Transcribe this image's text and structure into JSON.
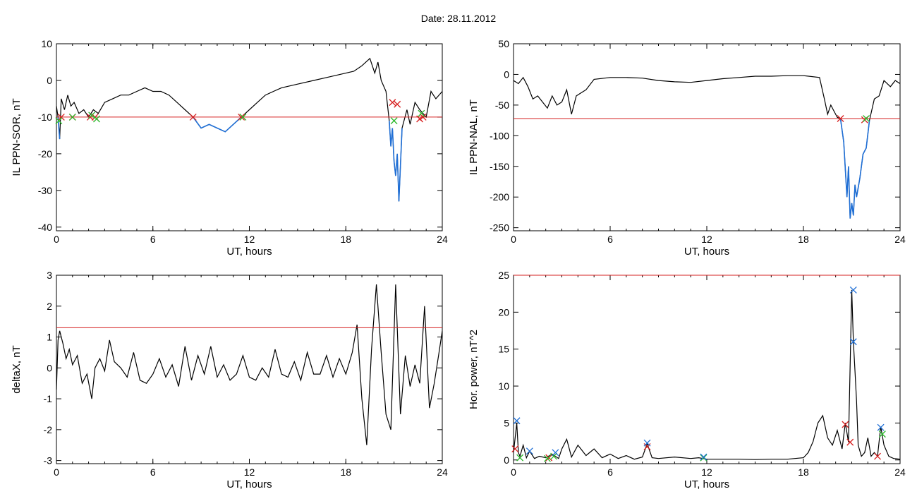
{
  "header": {
    "title": "Date:  28.11.2012"
  },
  "colors": {
    "axis": "#000000",
    "data_line": "#000000",
    "below_threshold": "#1f6fd6",
    "threshold": "#d62020",
    "marker_red": "#d62020",
    "marker_green": "#2bb82b",
    "marker_blue": "#1f6fd6"
  },
  "chart_data": [
    {
      "id": "sor",
      "type": "line",
      "title": "",
      "xlabel": "UT, hours",
      "ylabel": "IL PPN-SOR, nT",
      "xlim": [
        0,
        24
      ],
      "ylim": [
        -41,
        10
      ],
      "xticks": [
        0,
        6,
        12,
        18,
        24
      ],
      "yticks": [
        10,
        0,
        -10,
        -20,
        -30,
        -40
      ],
      "threshold": -10,
      "series": [
        {
          "x": [
            0,
            0.1,
            0.2,
            0.3,
            0.5,
            0.7,
            0.9,
            1.1,
            1.4,
            1.7,
            2.0,
            2.3,
            2.6,
            3.0,
            3.5,
            4.0,
            4.5,
            5.0,
            5.5,
            6.0,
            6.5,
            7.0,
            7.5,
            8.0,
            8.5,
            9.0,
            9.5,
            10.0,
            10.5,
            11.0,
            11.5,
            12.0,
            12.5,
            13.0,
            13.5,
            14.0,
            15.0,
            16.0,
            17.0,
            18.0,
            18.5,
            19.0,
            19.5,
            19.8,
            20.0,
            20.2,
            20.5,
            20.7,
            20.8,
            20.9,
            21.0,
            21.1,
            21.2,
            21.3,
            21.5,
            21.8,
            22.0,
            22.3,
            22.6,
            23.0,
            23.3,
            23.6,
            24.0
          ],
          "y": [
            -7,
            -10,
            -16,
            -5,
            -8,
            -4,
            -7,
            -6,
            -9,
            -8,
            -10,
            -8,
            -9,
            -6,
            -5,
            -4,
            -4,
            -3,
            -2,
            -3,
            -3,
            -4,
            -6,
            -8,
            -10,
            -13,
            -12,
            -13,
            -14,
            -12,
            -10,
            -8,
            -6,
            -4,
            -3,
            -2,
            -1,
            0,
            1,
            2,
            2.5,
            4,
            6,
            2,
            5,
            0,
            -3,
            -11,
            -18,
            -13,
            -22,
            -26,
            -20,
            -33,
            -13,
            -8,
            -12,
            -6,
            -8,
            -10,
            -3,
            -5,
            -3
          ]
        }
      ],
      "markers": {
        "red": [
          [
            0.3,
            -10
          ],
          [
            1.0,
            -10
          ],
          [
            2.1,
            -10
          ],
          [
            2.4,
            -10
          ],
          [
            8.5,
            -10
          ],
          [
            11.5,
            -10
          ],
          [
            20.9,
            -6
          ],
          [
            21.2,
            -6.5
          ],
          [
            22.6,
            -10.5
          ],
          [
            22.8,
            -10
          ]
        ],
        "green": [
          [
            0.15,
            -11
          ],
          [
            1.0,
            -10
          ],
          [
            2.2,
            -9.5
          ],
          [
            2.5,
            -10.5
          ],
          [
            11.6,
            -10
          ],
          [
            21.0,
            -11
          ],
          [
            22.7,
            -9
          ]
        ]
      }
    },
    {
      "id": "nal",
      "type": "line",
      "title": "",
      "xlabel": "UT, hours",
      "ylabel": "IL PPN-NAL, nT",
      "xlim": [
        0,
        24
      ],
      "ylim": [
        -255,
        50
      ],
      "xticks": [
        0,
        6,
        12,
        18,
        24
      ],
      "yticks": [
        50,
        0,
        -50,
        -100,
        -150,
        -200,
        -250
      ],
      "threshold": -72,
      "series": [
        {
          "x": [
            0,
            0.3,
            0.6,
            0.9,
            1.2,
            1.5,
            1.8,
            2.1,
            2.4,
            2.7,
            3.0,
            3.3,
            3.6,
            3.9,
            4.2,
            4.5,
            5.0,
            6.0,
            7.0,
            8.0,
            9.0,
            10.0,
            11.0,
            12.0,
            13.0,
            14.0,
            15.0,
            16.0,
            17.0,
            18.0,
            19.0,
            19.3,
            19.5,
            19.7,
            19.9,
            20.1,
            20.3,
            20.5,
            20.7,
            20.8,
            20.9,
            21.0,
            21.1,
            21.2,
            21.3,
            21.5,
            21.7,
            21.9,
            22.1,
            22.4,
            22.7,
            23.0,
            23.4,
            23.7,
            24.0
          ],
          "y": [
            -10,
            -15,
            -5,
            -20,
            -40,
            -35,
            -45,
            -55,
            -35,
            -50,
            -45,
            -25,
            -65,
            -35,
            -30,
            -25,
            -8,
            -5,
            -5,
            -6,
            -10,
            -12,
            -13,
            -10,
            -7,
            -5,
            -3,
            -3,
            -2,
            -2,
            -5,
            -40,
            -65,
            -50,
            -60,
            -70,
            -72,
            -110,
            -200,
            -150,
            -235,
            -210,
            -230,
            -180,
            -200,
            -170,
            -130,
            -120,
            -75,
            -40,
            -35,
            -10,
            -20,
            -10,
            -15
          ]
        }
      ],
      "markers": {
        "red": [
          [
            20.3,
            -72
          ],
          [
            21.8,
            -74
          ]
        ],
        "green": [
          [
            21.9,
            -72
          ]
        ]
      }
    },
    {
      "id": "deltax",
      "type": "line",
      "title": "",
      "xlabel": "UT, hours",
      "ylabel": "deltaX, nT",
      "xlim": [
        0,
        24
      ],
      "ylim": [
        -3.1,
        3
      ],
      "xticks": [
        0,
        6,
        12,
        18,
        24
      ],
      "yticks": [
        3,
        2,
        1,
        0,
        -1,
        -2,
        -3
      ],
      "threshold": 1.3,
      "series": [
        {
          "x": [
            0,
            0.1,
            0.2,
            0.4,
            0.6,
            0.8,
            1.0,
            1.3,
            1.6,
            1.9,
            2.2,
            2.4,
            2.7,
            3.0,
            3.3,
            3.6,
            4.0,
            4.4,
            4.8,
            5.2,
            5.6,
            6.0,
            6.4,
            6.8,
            7.2,
            7.6,
            8.0,
            8.4,
            8.8,
            9.2,
            9.6,
            10.0,
            10.4,
            10.8,
            11.2,
            11.6,
            12.0,
            12.4,
            12.8,
            13.2,
            13.6,
            14.0,
            14.4,
            14.8,
            15.2,
            15.6,
            16.0,
            16.4,
            16.8,
            17.2,
            17.6,
            18.0,
            18.4,
            18.7,
            19.0,
            19.3,
            19.6,
            19.9,
            20.2,
            20.5,
            20.8,
            21.1,
            21.4,
            21.7,
            22.0,
            22.3,
            22.6,
            22.9,
            23.2,
            23.5,
            23.8,
            24.0
          ],
          "y": [
            -0.7,
            0.9,
            1.2,
            0.8,
            0.3,
            0.6,
            0.1,
            0.4,
            -0.5,
            -0.2,
            -1.0,
            0.0,
            0.3,
            -0.1,
            0.9,
            0.2,
            0.0,
            -0.3,
            0.5,
            -0.4,
            -0.5,
            -0.2,
            0.3,
            -0.3,
            0.1,
            -0.6,
            0.7,
            -0.4,
            0.4,
            -0.2,
            0.7,
            -0.3,
            0.1,
            -0.4,
            -0.2,
            0.4,
            -0.3,
            -0.4,
            0.0,
            -0.3,
            0.6,
            -0.2,
            -0.3,
            0.2,
            -0.4,
            0.5,
            -0.2,
            -0.2,
            0.4,
            -0.3,
            0.3,
            -0.2,
            0.5,
            1.4,
            -1.0,
            -2.5,
            0.6,
            2.7,
            0.5,
            -1.5,
            -2.0,
            2.7,
            -1.5,
            0.4,
            -0.6,
            0.1,
            -0.5,
            2.0,
            -1.3,
            -0.5,
            0.5,
            1.2
          ]
        }
      ]
    },
    {
      "id": "power",
      "type": "line",
      "title": "",
      "xlabel": "UT, hours",
      "ylabel": "Hor. power, nT^2",
      "xlim": [
        0,
        24
      ],
      "ylim": [
        -0.5,
        25
      ],
      "xticks": [
        0,
        6,
        12,
        18,
        24
      ],
      "yticks": [
        25,
        20,
        15,
        10,
        5,
        0
      ],
      "threshold": 25,
      "series": [
        {
          "x": [
            0,
            0.1,
            0.2,
            0.3,
            0.4,
            0.6,
            0.8,
            1.0,
            1.3,
            1.6,
            2.0,
            2.4,
            2.8,
            3.0,
            3.3,
            3.6,
            4.0,
            4.5,
            5.0,
            5.5,
            6.0,
            6.5,
            7.0,
            7.5,
            8.0,
            8.3,
            8.6,
            9.0,
            10.0,
            11.0,
            11.5,
            12.0,
            13.0,
            14.0,
            15.0,
            16.0,
            17.0,
            18.0,
            18.3,
            18.6,
            18.9,
            19.2,
            19.5,
            19.8,
            20.1,
            20.4,
            20.6,
            20.8,
            21.0,
            21.1,
            21.2,
            21.3,
            21.4,
            21.6,
            21.8,
            22.0,
            22.2,
            22.4,
            22.6,
            22.8,
            23.0,
            23.3,
            23.6,
            24.0
          ],
          "y": [
            1,
            3,
            5,
            1,
            0.5,
            2,
            0.3,
            1.2,
            0.2,
            0.5,
            0.3,
            0.8,
            0.2,
            1.5,
            2.8,
            0.4,
            2.0,
            0.6,
            1.5,
            0.3,
            0.8,
            0.2,
            0.6,
            0.1,
            0.4,
            2.2,
            0.3,
            0.2,
            0.4,
            0.2,
            0.3,
            0.1,
            0.1,
            0.1,
            0.05,
            0.1,
            0.1,
            0.3,
            1.0,
            2.5,
            5.0,
            6.0,
            3.0,
            2.0,
            4.0,
            1.5,
            5.0,
            2.4,
            23,
            16,
            12,
            8,
            2,
            0.5,
            1.0,
            3.0,
            0.5,
            1.0,
            0.5,
            4.5,
            2.0,
            0.5,
            0.2,
            0.1
          ]
        }
      ],
      "markers": {
        "red": [
          [
            0.1,
            1.5
          ],
          [
            2.2,
            0.3
          ],
          [
            8.3,
            1.8
          ],
          [
            20.6,
            4.8
          ],
          [
            20.9,
            2.4
          ],
          [
            22.6,
            0.5
          ]
        ],
        "green": [
          [
            0.4,
            0.3
          ],
          [
            2.1,
            0.2
          ],
          [
            2.5,
            0.5
          ],
          [
            11.8,
            0.3
          ],
          [
            22.9,
            3.5
          ]
        ],
        "blue": [
          [
            0.2,
            5.3
          ],
          [
            1.0,
            1.2
          ],
          [
            2.6,
            1.0
          ],
          [
            8.3,
            2.3
          ],
          [
            11.8,
            0.4
          ],
          [
            21.1,
            23
          ],
          [
            21.1,
            16
          ],
          [
            22.8,
            4.4
          ]
        ]
      }
    }
  ]
}
